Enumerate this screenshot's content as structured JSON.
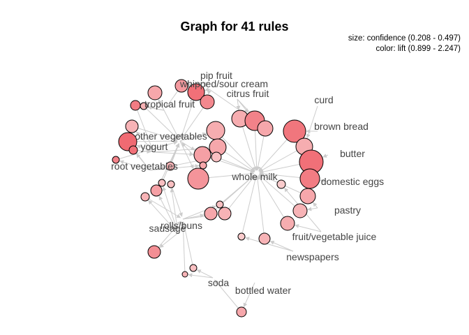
{
  "title": "Graph for 41 rules",
  "legend": {
    "size": "size: confidence (0.208 - 0.497)",
    "color": "color: lift (0.899 - 2.247)"
  },
  "colors": {
    "edge": "#cccccc",
    "label": "#444444",
    "node_stroke": "#000000",
    "lift_low": "#fbe3e3",
    "lift_high": "#f06a72"
  },
  "items": [
    {
      "id": "pip",
      "label": "pip fruit"
    },
    {
      "id": "whip",
      "label": "whipped/sour cream"
    },
    {
      "id": "citrus",
      "label": "citrus fruit"
    },
    {
      "id": "tropical",
      "label": "tropical fruit"
    },
    {
      "id": "curd",
      "label": "curd"
    },
    {
      "id": "brownbread",
      "label": "brown bread"
    },
    {
      "id": "othveg",
      "label": "other vegetables"
    },
    {
      "id": "yogurt",
      "label": "yogurt"
    },
    {
      "id": "butter",
      "label": "butter"
    },
    {
      "id": "rootveg",
      "label": "root vegetables"
    },
    {
      "id": "wholemilk",
      "label": "whole milk"
    },
    {
      "id": "eggs",
      "label": "domestic eggs"
    },
    {
      "id": "pastry",
      "label": "pastry"
    },
    {
      "id": "rolls",
      "label": "rolls/buns"
    },
    {
      "id": "sausage",
      "label": "sausage"
    },
    {
      "id": "juice",
      "label": "fruit/vegetable juice"
    },
    {
      "id": "newspapers",
      "label": "newspapers"
    },
    {
      "id": "soda",
      "label": "soda"
    },
    {
      "id": "water",
      "label": "bottled water"
    }
  ]
}
